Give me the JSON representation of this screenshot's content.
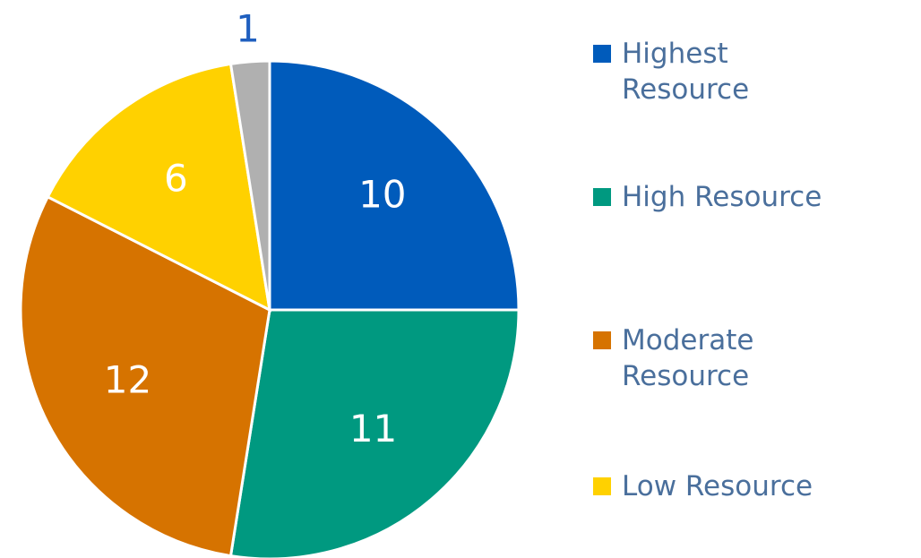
{
  "chart_data": {
    "type": "pie",
    "categories": [
      "Highest Resource",
      "High Resource",
      "Moderate Resource",
      "Low Resource",
      null
    ],
    "values": [
      10,
      11,
      12,
      6,
      1
    ],
    "colors": [
      "#005bbb",
      "#009980",
      "#d67300",
      "#ffd100",
      "#b0b0b0"
    ],
    "legend": "right"
  }
}
